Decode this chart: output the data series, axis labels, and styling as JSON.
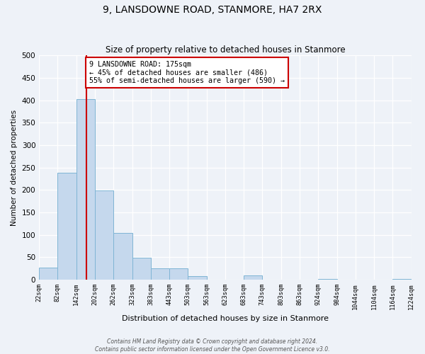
{
  "title": "9, LANSDOWNE ROAD, STANMORE, HA7 2RX",
  "subtitle": "Size of property relative to detached houses in Stanmore",
  "xlabel": "Distribution of detached houses by size in Stanmore",
  "ylabel": "Number of detached properties",
  "bin_edges": [
    22,
    82,
    142,
    202,
    262,
    323,
    383,
    443,
    503,
    563,
    623,
    683,
    743,
    803,
    863,
    924,
    984,
    1044,
    1104,
    1164,
    1224
  ],
  "bin_labels": [
    "22sqm",
    "82sqm",
    "142sqm",
    "202sqm",
    "262sqm",
    "323sqm",
    "383sqm",
    "443sqm",
    "503sqm",
    "563sqm",
    "623sqm",
    "683sqm",
    "743sqm",
    "803sqm",
    "863sqm",
    "924sqm",
    "984sqm",
    "1044sqm",
    "1104sqm",
    "1164sqm",
    "1224sqm"
  ],
  "bar_heights": [
    27,
    238,
    403,
    199,
    105,
    49,
    25,
    25,
    8,
    0,
    0,
    10,
    0,
    0,
    0,
    2,
    0,
    0,
    0,
    2
  ],
  "bar_color": "#c5d8ed",
  "bar_edge_color": "#7fb5d5",
  "vline_x": 175,
  "vline_color": "#cc0000",
  "annotation_title": "9 LANSDOWNE ROAD: 175sqm",
  "annotation_line1": "← 45% of detached houses are smaller (486)",
  "annotation_line2": "55% of semi-detached houses are larger (590) →",
  "annotation_box_color": "#cc0000",
  "ylim": [
    0,
    500
  ],
  "yticks": [
    0,
    50,
    100,
    150,
    200,
    250,
    300,
    350,
    400,
    450,
    500
  ],
  "footer1": "Contains HM Land Registry data © Crown copyright and database right 2024.",
  "footer2": "Contains public sector information licensed under the Open Government Licence v3.0.",
  "bg_color": "#eef2f8",
  "plot_bg_color": "#eef2f8"
}
